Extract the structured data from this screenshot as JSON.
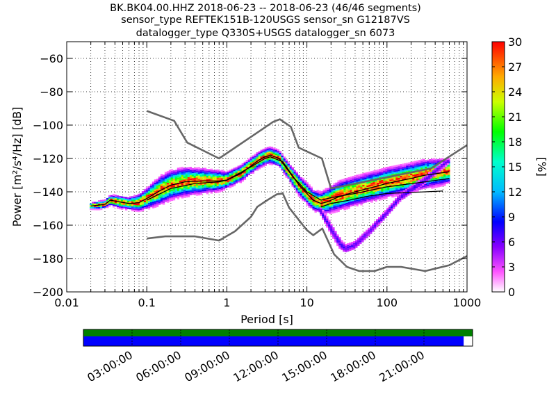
{
  "chart_data": {
    "type": "heatmap",
    "title_lines": [
      "BK.BK04.00.HHZ   2018-06-23 -- 2018-06-23  (46/46 segments)",
      "sensor_type REFTEK151B-120USGS sensor_sn G12187VS",
      "datalogger_type Q330S+USGS datalogger_sn 6073"
    ],
    "xlabel": "Period [s]",
    "ylabel": "Power [m²/s⁴/Hz] [dB]",
    "xscale": "log",
    "xlim": [
      0.01,
      1000
    ],
    "ylim": [
      -200,
      -50
    ],
    "xticks": [
      {
        "v": 0.01,
        "label": "0.01"
      },
      {
        "v": 0.1,
        "label": "0.1"
      },
      {
        "v": 1,
        "label": "1"
      },
      {
        "v": 10,
        "label": "10"
      },
      {
        "v": 100,
        "label": "100"
      },
      {
        "v": 1000,
        "label": "1000"
      }
    ],
    "yticks": [
      {
        "v": -60,
        "label": "−60"
      },
      {
        "v": -80,
        "label": "−80"
      },
      {
        "v": -100,
        "label": "−100"
      },
      {
        "v": -120,
        "label": "−120"
      },
      {
        "v": -140,
        "label": "−140"
      },
      {
        "v": -160,
        "label": "−160"
      },
      {
        "v": -180,
        "label": "−180"
      },
      {
        "v": -200,
        "label": "−200"
      }
    ],
    "grid": true,
    "colorbar": {
      "label": "[%]",
      "range": [
        0,
        30
      ],
      "ticks": [
        {
          "v": 0,
          "label": "0"
        },
        {
          "v": 3,
          "label": "3"
        },
        {
          "v": 6,
          "label": "6"
        },
        {
          "v": 9,
          "label": "9"
        },
        {
          "v": 12,
          "label": "12"
        },
        {
          "v": 15,
          "label": "15"
        },
        {
          "v": 18,
          "label": "18"
        },
        {
          "v": 21,
          "label": "21"
        },
        {
          "v": 24,
          "label": "24"
        },
        {
          "v": 27,
          "label": "27"
        },
        {
          "v": 30,
          "label": "30"
        }
      ]
    },
    "series": [
      {
        "role": "noise-model-high",
        "color": "#666666",
        "points": [
          [
            0.1,
            -91.5
          ],
          [
            0.22,
            -97.4
          ],
          [
            0.32,
            -110.5
          ],
          [
            0.8,
            -120.0
          ],
          [
            3.8,
            -98.0
          ],
          [
            4.6,
            -96.5
          ],
          [
            6.3,
            -101.0
          ],
          [
            7.9,
            -113.5
          ],
          [
            15.4,
            -120.0
          ],
          [
            20.0,
            -138.0
          ],
          [
            354,
            -126.0
          ],
          [
            1000,
            -112.0
          ]
        ]
      },
      {
        "role": "noise-model-low",
        "color": "#666666",
        "points": [
          [
            0.1,
            -168.0
          ],
          [
            0.17,
            -166.7
          ],
          [
            0.4,
            -166.7
          ],
          [
            0.8,
            -169.2
          ],
          [
            1.26,
            -163.7
          ],
          [
            2.0,
            -155.0
          ],
          [
            2.4,
            -149.0
          ],
          [
            3.2,
            -145.0
          ],
          [
            4.2,
            -141.5
          ],
          [
            5.0,
            -141.0
          ],
          [
            6.0,
            -149.5
          ],
          [
            10.0,
            -163.0
          ],
          [
            12.0,
            -166.0
          ],
          [
            15.6,
            -162.0
          ],
          [
            21.9,
            -177.5
          ],
          [
            31.6,
            -185.0
          ],
          [
            45,
            -187.5
          ],
          [
            70,
            -187.5
          ],
          [
            100,
            -185.0
          ],
          [
            150,
            -185.0
          ],
          [
            300,
            -187.5
          ],
          [
            600,
            -184.0
          ],
          [
            1000,
            -178.5
          ]
        ]
      },
      {
        "role": "mean-psd",
        "color": "#000000",
        "points": [
          [
            0.02,
            -148.5
          ],
          [
            0.025,
            -148.0
          ],
          [
            0.03,
            -147.5
          ],
          [
            0.035,
            -145.0
          ],
          [
            0.045,
            -146.0
          ],
          [
            0.06,
            -147.0
          ],
          [
            0.08,
            -146.5
          ],
          [
            0.1,
            -144.0
          ],
          [
            0.15,
            -139.0
          ],
          [
            0.2,
            -136.0
          ],
          [
            0.3,
            -134.0
          ],
          [
            0.5,
            -133.5
          ],
          [
            0.8,
            -133.5
          ],
          [
            1.0,
            -133.0
          ],
          [
            1.5,
            -129.0
          ],
          [
            2.0,
            -124.5
          ],
          [
            2.5,
            -121.0
          ],
          [
            3.0,
            -119.0
          ],
          [
            3.5,
            -118.0
          ],
          [
            4.5,
            -120.0
          ],
          [
            6.0,
            -128.0
          ],
          [
            8.0,
            -136.0
          ],
          [
            10.0,
            -141.0
          ],
          [
            12.0,
            -145.0
          ],
          [
            15.0,
            -147.0
          ],
          [
            18.0,
            -146.0
          ],
          [
            25.0,
            -143.0
          ],
          [
            40.0,
            -140.0
          ],
          [
            70.0,
            -137.0
          ],
          [
            100.0,
            -135.0
          ],
          [
            200.0,
            -132.0
          ],
          [
            300.0,
            -130.0
          ],
          [
            600.0,
            -128.0
          ]
        ]
      },
      {
        "role": "mode-psd",
        "color": "#000000",
        "points": [
          [
            0.1,
            -145.0
          ],
          [
            0.2,
            -138.0
          ],
          [
            0.4,
            -135.0
          ],
          [
            0.8,
            -134.0
          ],
          [
            1.0,
            -133.0
          ],
          [
            2.0,
            -125.0
          ],
          [
            3.0,
            -120.0
          ],
          [
            3.5,
            -119.0
          ],
          [
            5.0,
            -122.0
          ],
          [
            7.0,
            -132.0
          ],
          [
            10.0,
            -140.0
          ],
          [
            15.0,
            -145.0
          ],
          [
            20.0,
            -143.5
          ],
          [
            40.0,
            -141.0
          ],
          [
            100.0,
            -137.0
          ],
          [
            300.0,
            -134.0
          ],
          [
            600.0,
            -132.0
          ]
        ]
      },
      {
        "role": "low-percentile",
        "color": "#000000",
        "points": [
          [
            15.0,
            -149.0
          ],
          [
            20.0,
            -147.0
          ],
          [
            30.0,
            -145.5
          ],
          [
            60.0,
            -142.5
          ],
          [
            100.0,
            -141.0
          ],
          [
            300.0,
            -140.0
          ],
          [
            500.0,
            -139.5
          ]
        ]
      }
    ],
    "density": {
      "main_band": [
        [
          0.02,
          -148.5,
          1.5
        ],
        [
          0.025,
          -148.0,
          2
        ],
        [
          0.03,
          -147.5,
          2
        ],
        [
          0.035,
          -145.0,
          2.5
        ],
        [
          0.045,
          -146.0,
          3
        ],
        [
          0.06,
          -147.0,
          3
        ],
        [
          0.08,
          -146.5,
          4
        ],
        [
          0.1,
          -144.0,
          5
        ],
        [
          0.15,
          -139.0,
          7
        ],
        [
          0.2,
          -136.0,
          7
        ],
        [
          0.3,
          -134.0,
          7
        ],
        [
          0.5,
          -133.5,
          6
        ],
        [
          0.8,
          -133.5,
          5
        ],
        [
          1.0,
          -133.0,
          4
        ],
        [
          1.5,
          -129.0,
          4
        ],
        [
          2.0,
          -124.5,
          4
        ],
        [
          2.5,
          -121.0,
          4
        ],
        [
          3.0,
          -119.0,
          4
        ],
        [
          3.5,
          -118.0,
          4
        ],
        [
          4.5,
          -120.0,
          4
        ],
        [
          6.0,
          -128.0,
          4
        ],
        [
          8.0,
          -136.0,
          5
        ],
        [
          10.0,
          -141.0,
          5
        ],
        [
          12.0,
          -145.0,
          5
        ],
        [
          15.0,
          -146.5,
          5
        ],
        [
          18.0,
          -145.5,
          6
        ],
        [
          25.0,
          -142.5,
          7
        ],
        [
          40.0,
          -139.5,
          7
        ],
        [
          70.0,
          -136.5,
          7
        ],
        [
          100.0,
          -134.5,
          7
        ],
        [
          200.0,
          -131.5,
          7
        ],
        [
          300.0,
          -129.5,
          7
        ],
        [
          600.0,
          -127.5,
          6
        ]
      ],
      "dip_band": [
        [
          15.0,
          -152.0,
          3
        ],
        [
          20.0,
          -162.0,
          4
        ],
        [
          25.0,
          -170.0,
          4
        ],
        [
          30.0,
          -174.0,
          3
        ],
        [
          40.0,
          -172.0,
          3
        ],
        [
          60.0,
          -164.0,
          3
        ],
        [
          90.0,
          -155.0,
          3
        ],
        [
          150.0,
          -143.0,
          3
        ],
        [
          300.0,
          -133.0,
          3
        ],
        [
          600.0,
          -121.0,
          2
        ]
      ]
    },
    "timeline": {
      "ticks": [
        "03:00:00",
        "06:00:00",
        "09:00:00",
        "12:00:00",
        "15:00:00",
        "18:00:00",
        "21:00:00"
      ],
      "coverage": [
        0,
        0.977
      ],
      "top_bar_color": "#008000",
      "coverage_color": "#0000ff"
    }
  }
}
